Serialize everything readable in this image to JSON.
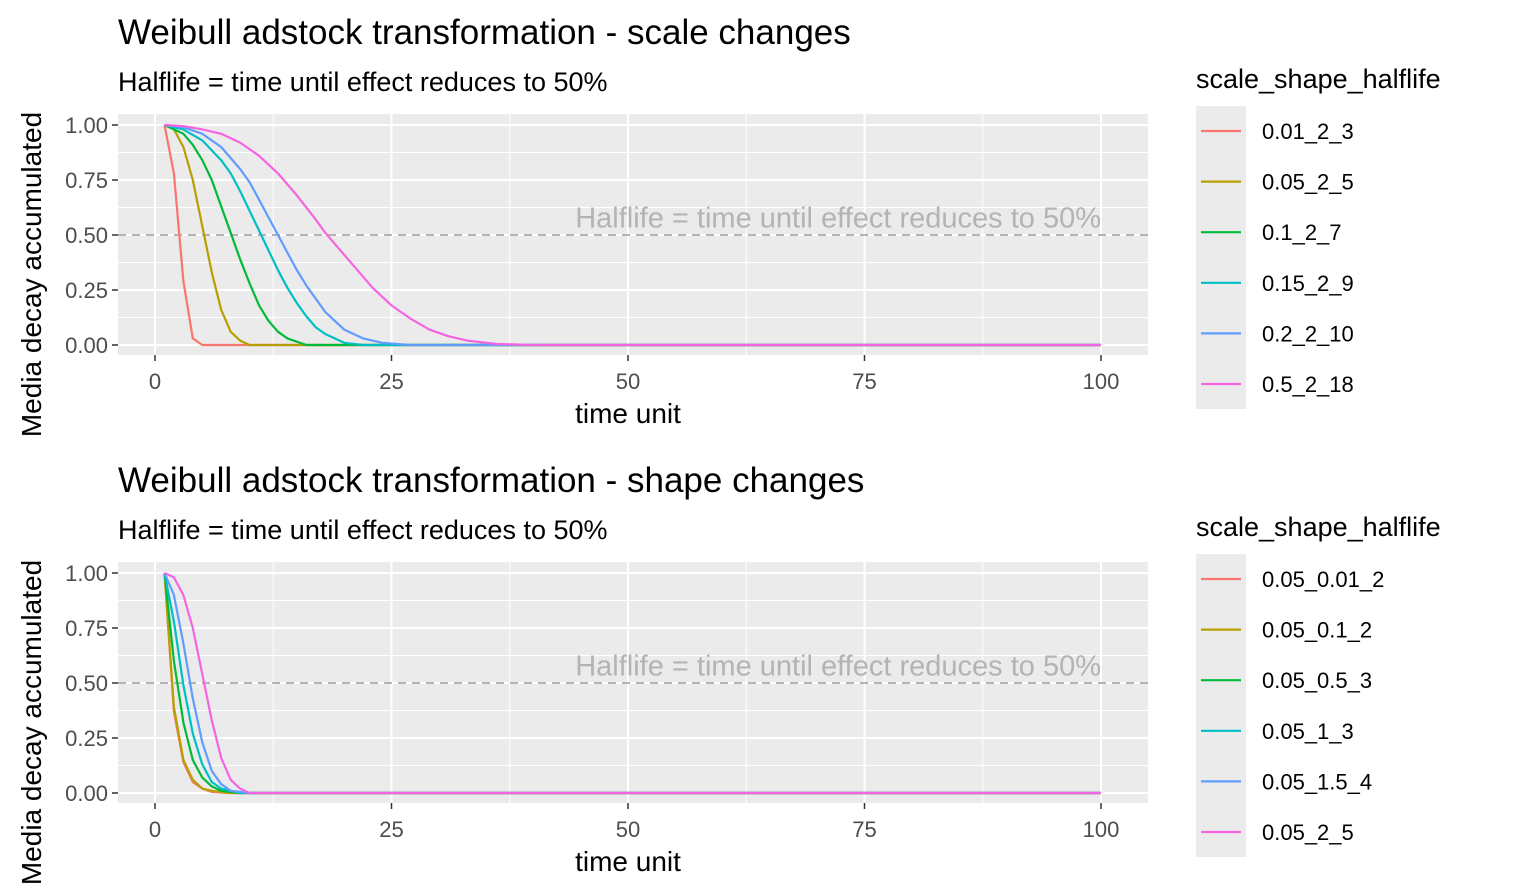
{
  "colors": {
    "panel_bg": "#ebebeb",
    "grid": "#ffffff",
    "reference_line": "#b3b3b3",
    "annotation": "#b3b3b3",
    "series": [
      "#f8766d",
      "#b79f00",
      "#00ba38",
      "#00bfc4",
      "#619cff",
      "#f564e3"
    ]
  },
  "chart_data": [
    {
      "type": "line",
      "title": "Weibull adstock transformation - scale changes",
      "subtitle": "Halflife = time until effect reduces to 50%",
      "xlabel": "time unit",
      "ylabel": "Media decay accumulated",
      "xlim": [
        0,
        100
      ],
      "ylim": [
        0,
        1
      ],
      "x_ticks": [
        "0",
        "25",
        "50",
        "75",
        "100"
      ],
      "y_ticks": [
        "0.00",
        "0.25",
        "0.50",
        "0.75",
        "1.00"
      ],
      "grid": true,
      "legend_title": "scale_shape_halflife",
      "legend_position": "right",
      "reference_line": {
        "y": 0.5,
        "style": "dashed"
      },
      "annotation": {
        "text": "Halflife = time until effect reduces to 50%",
        "x": 100,
        "y": 0.58
      },
      "series": [
        {
          "name": "0.01_2_3",
          "points": [
            [
              1,
              1.0
            ],
            [
              2,
              0.78
            ],
            [
              3,
              0.29
            ],
            [
              4,
              0.03
            ],
            [
              5,
              0.0
            ],
            [
              100,
              0.0
            ]
          ]
        },
        {
          "name": "0.05_2_5",
          "points": [
            [
              1,
              1.0
            ],
            [
              2,
              0.98
            ],
            [
              3,
              0.9
            ],
            [
              4,
              0.75
            ],
            [
              5,
              0.54
            ],
            [
              6,
              0.33
            ],
            [
              7,
              0.16
            ],
            [
              8,
              0.06
            ],
            [
              9,
              0.02
            ],
            [
              10,
              0.0
            ],
            [
              100,
              0.0
            ]
          ]
        },
        {
          "name": "0.1_2_7",
          "points": [
            [
              1,
              1.0
            ],
            [
              3,
              0.96
            ],
            [
              4,
              0.91
            ],
            [
              5,
              0.84
            ],
            [
              6,
              0.75
            ],
            [
              7,
              0.63
            ],
            [
              8,
              0.51
            ],
            [
              9,
              0.39
            ],
            [
              10,
              0.28
            ],
            [
              11,
              0.18
            ],
            [
              12,
              0.11
            ],
            [
              13,
              0.06
            ],
            [
              14,
              0.03
            ],
            [
              16,
              0.0
            ],
            [
              100,
              0.0
            ]
          ]
        },
        {
          "name": "0.15_2_9",
          "points": [
            [
              1,
              1.0
            ],
            [
              3,
              0.98
            ],
            [
              5,
              0.93
            ],
            [
              7,
              0.84
            ],
            [
              8,
              0.78
            ],
            [
              9,
              0.7
            ],
            [
              10,
              0.61
            ],
            [
              11,
              0.52
            ],
            [
              12,
              0.43
            ],
            [
              13,
              0.34
            ],
            [
              14,
              0.26
            ],
            [
              15,
              0.19
            ],
            [
              16,
              0.13
            ],
            [
              17,
              0.08
            ],
            [
              18,
              0.05
            ],
            [
              20,
              0.01
            ],
            [
              22,
              0.0
            ],
            [
              100,
              0.0
            ]
          ]
        },
        {
          "name": "0.2_2_10",
          "points": [
            [
              1,
              1.0
            ],
            [
              3,
              0.99
            ],
            [
              5,
              0.96
            ],
            [
              7,
              0.9
            ],
            [
              9,
              0.8
            ],
            [
              10,
              0.74
            ],
            [
              11,
              0.66
            ],
            [
              12,
              0.58
            ],
            [
              13,
              0.5
            ],
            [
              14,
              0.42
            ],
            [
              15,
              0.34
            ],
            [
              16,
              0.27
            ],
            [
              17,
              0.21
            ],
            [
              18,
              0.15
            ],
            [
              19,
              0.11
            ],
            [
              20,
              0.07
            ],
            [
              22,
              0.03
            ],
            [
              24,
              0.01
            ],
            [
              27,
              0.0
            ],
            [
              100,
              0.0
            ]
          ]
        },
        {
          "name": "0.5_2_18",
          "points": [
            [
              1,
              1.0
            ],
            [
              3,
              0.995
            ],
            [
              5,
              0.98
            ],
            [
              7,
              0.96
            ],
            [
              9,
              0.92
            ],
            [
              11,
              0.86
            ],
            [
              13,
              0.78
            ],
            [
              15,
              0.68
            ],
            [
              17,
              0.57
            ],
            [
              18,
              0.51
            ],
            [
              19,
              0.46
            ],
            [
              21,
              0.36
            ],
            [
              23,
              0.26
            ],
            [
              25,
              0.18
            ],
            [
              27,
              0.12
            ],
            [
              29,
              0.07
            ],
            [
              31,
              0.04
            ],
            [
              33,
              0.02
            ],
            [
              36,
              0.005
            ],
            [
              40,
              0.0
            ],
            [
              100,
              0.0
            ]
          ]
        }
      ]
    },
    {
      "type": "line",
      "title": "Weibull adstock transformation - shape changes",
      "subtitle": "Halflife = time until effect reduces to 50%",
      "xlabel": "time unit",
      "ylabel": "Media decay accumulated",
      "xlim": [
        0,
        100
      ],
      "ylim": [
        0,
        1
      ],
      "x_ticks": [
        "0",
        "25",
        "50",
        "75",
        "100"
      ],
      "y_ticks": [
        "0.00",
        "0.25",
        "0.50",
        "0.75",
        "1.00"
      ],
      "grid": true,
      "legend_title": "scale_shape_halflife",
      "legend_position": "right",
      "reference_line": {
        "y": 0.5,
        "style": "dashed"
      },
      "annotation": {
        "text": "Halflife = time until effect reduces to 50%",
        "x": 100,
        "y": 0.58
      },
      "series": [
        {
          "name": "0.05_0.01_2",
          "points": [
            [
              1,
              1.0
            ],
            [
              2,
              0.37
            ],
            [
              3,
              0.14
            ],
            [
              4,
              0.05
            ],
            [
              5,
              0.02
            ],
            [
              6,
              0.005
            ],
            [
              8,
              0.0
            ],
            [
              100,
              0.0
            ]
          ]
        },
        {
          "name": "0.05_0.1_2",
          "points": [
            [
              1,
              1.0
            ],
            [
              2,
              0.39
            ],
            [
              3,
              0.15
            ],
            [
              4,
              0.06
            ],
            [
              5,
              0.02
            ],
            [
              6,
              0.01
            ],
            [
              8,
              0.0
            ],
            [
              100,
              0.0
            ]
          ]
        },
        {
          "name": "0.05_0.5_3",
          "points": [
            [
              1,
              1.0
            ],
            [
              2,
              0.6
            ],
            [
              3,
              0.32
            ],
            [
              4,
              0.15
            ],
            [
              5,
              0.07
            ],
            [
              6,
              0.03
            ],
            [
              7,
              0.01
            ],
            [
              9,
              0.0
            ],
            [
              100,
              0.0
            ]
          ]
        },
        {
          "name": "0.05_1_3",
          "points": [
            [
              1,
              1.0
            ],
            [
              2,
              0.78
            ],
            [
              3,
              0.49
            ],
            [
              4,
              0.27
            ],
            [
              5,
              0.13
            ],
            [
              6,
              0.05
            ],
            [
              7,
              0.02
            ],
            [
              9,
              0.0
            ],
            [
              100,
              0.0
            ]
          ]
        },
        {
          "name": "0.05_1.5_4",
          "points": [
            [
              1,
              1.0
            ],
            [
              2,
              0.9
            ],
            [
              3,
              0.68
            ],
            [
              4,
              0.43
            ],
            [
              5,
              0.23
            ],
            [
              6,
              0.1
            ],
            [
              7,
              0.04
            ],
            [
              8,
              0.01
            ],
            [
              10,
              0.0
            ],
            [
              100,
              0.0
            ]
          ]
        },
        {
          "name": "0.05_2_5",
          "points": [
            [
              1,
              1.0
            ],
            [
              2,
              0.98
            ],
            [
              3,
              0.9
            ],
            [
              4,
              0.75
            ],
            [
              5,
              0.54
            ],
            [
              6,
              0.33
            ],
            [
              7,
              0.16
            ],
            [
              8,
              0.06
            ],
            [
              9,
              0.02
            ],
            [
              10,
              0.0
            ],
            [
              100,
              0.0
            ]
          ]
        }
      ]
    }
  ]
}
